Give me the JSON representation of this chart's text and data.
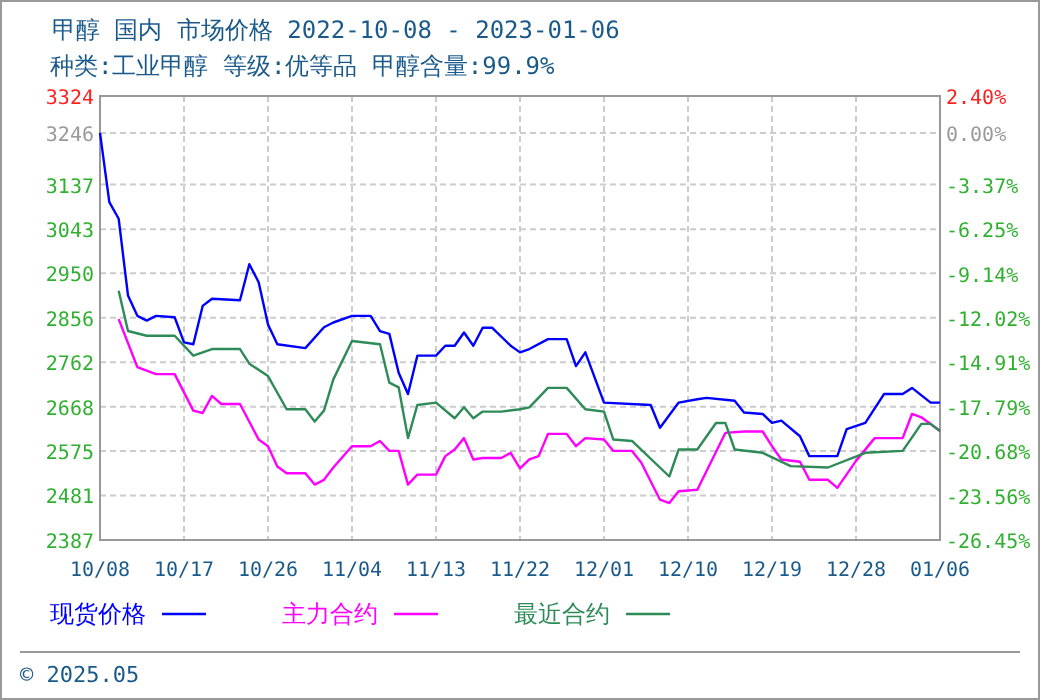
{
  "chart_data": {
    "type": "line",
    "title": "甲醇 国内 市场价格 2022-10-08 - 2023-01-06",
    "subtitle": "种类:工业甲醇 等级:优等品 甲醇含量:99.9%",
    "xlim": [
      "2022-10-08",
      "2023-01-06"
    ],
    "xticks": [
      {
        "value": "2022-10-08",
        "label": "10/08"
      },
      {
        "value": "2022-10-17",
        "label": "10/17"
      },
      {
        "value": "2022-10-26",
        "label": "10/26"
      },
      {
        "value": "2022-11-04",
        "label": "11/04"
      },
      {
        "value": "2022-11-13",
        "label": "11/13"
      },
      {
        "value": "2022-11-22",
        "label": "11/22"
      },
      {
        "value": "2022-12-01",
        "label": "12/01"
      },
      {
        "value": "2022-12-10",
        "label": "12/10"
      },
      {
        "value": "2022-12-19",
        "label": "12/19"
      },
      {
        "value": "2022-12-28",
        "label": "12/28"
      },
      {
        "value": "2023-01-06",
        "label": "01/06"
      }
    ],
    "ylim": [
      2387,
      3324
    ],
    "yticks": [
      2387,
      2481,
      2575,
      2668,
      2762,
      2856,
      2950,
      3043,
      3137,
      3246,
      3324
    ],
    "y2lim": [
      -26.45,
      2.4
    ],
    "y2ticks": [
      {
        "value": -26.45,
        "label": "-26.45%"
      },
      {
        "value": -23.56,
        "label": "-23.56%"
      },
      {
        "value": -20.68,
        "label": "-20.68%"
      },
      {
        "value": -17.79,
        "label": "-17.79%"
      },
      {
        "value": -14.91,
        "label": "-14.91%"
      },
      {
        "value": -12.02,
        "label": "-12.02%"
      },
      {
        "value": -9.14,
        "label": "-9.14%"
      },
      {
        "value": -6.25,
        "label": "-6.25%"
      },
      {
        "value": -3.37,
        "label": "-3.37%"
      },
      {
        "value": 0,
        "label": "0.00%"
      },
      {
        "value": 2.4,
        "label": "2.40%"
      }
    ],
    "grid": true,
    "legend": "bottom",
    "marker": "none",
    "line_style": "solid",
    "annotations": [
      "© 2025.05"
    ],
    "series": [
      {
        "name": "现货价格",
        "color": "#0000ff",
        "x": [
          "2022-10-08",
          "2022-10-09",
          "2022-10-10",
          "2022-10-11",
          "2022-10-12",
          "2022-10-13",
          "2022-10-14",
          "2022-10-16",
          "2022-10-17",
          "2022-10-18",
          "2022-10-19",
          "2022-10-20",
          "2022-10-23",
          "2022-10-24",
          "2022-10-25",
          "2022-10-26",
          "2022-10-27",
          "2022-10-30",
          "2022-11-01",
          "2022-11-02",
          "2022-11-04",
          "2022-11-06",
          "2022-11-07",
          "2022-11-08",
          "2022-11-09",
          "2022-11-10",
          "2022-11-11",
          "2022-11-13",
          "2022-11-14",
          "2022-11-15",
          "2022-11-16",
          "2022-11-17",
          "2022-11-18",
          "2022-11-19",
          "2022-11-21",
          "2022-11-22",
          "2022-11-23",
          "2022-11-25",
          "2022-11-27",
          "2022-11-28",
          "2022-11-29",
          "2022-12-01",
          "2022-12-06",
          "2022-12-07",
          "2022-12-09",
          "2022-12-11",
          "2022-12-12",
          "2022-12-15",
          "2022-12-16",
          "2022-12-18",
          "2022-12-19",
          "2022-12-20",
          "2022-12-22",
          "2022-12-23",
          "2022-12-26",
          "2022-12-27",
          "2022-12-29",
          "2022-12-31",
          "2023-01-02",
          "2023-01-03",
          "2023-01-05",
          "2023-01-06"
        ],
        "values": [
          3246,
          3100,
          3065,
          2903,
          2860,
          2850,
          2860,
          2857,
          2804,
          2800,
          2881,
          2896,
          2893,
          2969,
          2931,
          2842,
          2800,
          2792,
          2836,
          2846,
          2860,
          2860,
          2828,
          2822,
          2740,
          2695,
          2776,
          2776,
          2797,
          2797,
          2825,
          2797,
          2835,
          2835,
          2797,
          2783,
          2790,
          2811,
          2811,
          2754,
          2783,
          2677,
          2672,
          2624,
          2677,
          2684,
          2687,
          2681,
          2656,
          2653,
          2634,
          2639,
          2606,
          2564,
          2564,
          2621,
          2634,
          2695,
          2695,
          2708,
          2677,
          2677
        ]
      },
      {
        "name": "主力合约",
        "color": "#ff00ff",
        "x": [
          "2022-10-10",
          "2022-10-12",
          "2022-10-14",
          "2022-10-16",
          "2022-10-18",
          "2022-10-19",
          "2022-10-20",
          "2022-10-21",
          "2022-10-23",
          "2022-10-25",
          "2022-10-26",
          "2022-10-27",
          "2022-10-28",
          "2022-10-30",
          "2022-10-31",
          "2022-11-01",
          "2022-11-02",
          "2022-11-04",
          "2022-11-06",
          "2022-11-07",
          "2022-11-08",
          "2022-11-09",
          "2022-11-10",
          "2022-11-11",
          "2022-11-13",
          "2022-11-14",
          "2022-11-15",
          "2022-11-16",
          "2022-11-17",
          "2022-11-18",
          "2022-11-20",
          "2022-11-21",
          "2022-11-22",
          "2022-11-23",
          "2022-11-24",
          "2022-11-25",
          "2022-11-27",
          "2022-11-28",
          "2022-11-29",
          "2022-12-01",
          "2022-12-02",
          "2022-12-04",
          "2022-12-05",
          "2022-12-07",
          "2022-12-08",
          "2022-12-09",
          "2022-12-11",
          "2022-12-14",
          "2022-12-16",
          "2022-12-18",
          "2022-12-19",
          "2022-12-20",
          "2022-12-22",
          "2022-12-23",
          "2022-12-25",
          "2022-12-26",
          "2022-12-28",
          "2022-12-30",
          "2023-01-02",
          "2023-01-03",
          "2023-01-04",
          "2023-01-06"
        ],
        "values": [
          2853,
          2752,
          2737,
          2737,
          2660,
          2655,
          2691,
          2674,
          2674,
          2599,
          2585,
          2542,
          2528,
          2528,
          2504,
          2514,
          2540,
          2585,
          2585,
          2596,
          2575,
          2575,
          2504,
          2525,
          2525,
          2564,
          2578,
          2602,
          2557,
          2560,
          2560,
          2571,
          2538,
          2557,
          2564,
          2611,
          2611,
          2585,
          2602,
          2599,
          2575,
          2575,
          2550,
          2472,
          2465,
          2490,
          2493,
          2613,
          2616,
          2616,
          2585,
          2557,
          2552,
          2514,
          2514,
          2497,
          2554,
          2602,
          2602,
          2653,
          2646,
          2617
        ]
      },
      {
        "name": "最近合约",
        "color": "#2e8b57",
        "x": [
          "2022-10-10",
          "2022-10-11",
          "2022-10-13",
          "2022-10-16",
          "2022-10-18",
          "2022-10-20",
          "2022-10-23",
          "2022-10-24",
          "2022-10-26",
          "2022-10-28",
          "2022-10-30",
          "2022-10-31",
          "2022-11-01",
          "2022-11-02",
          "2022-11-04",
          "2022-11-07",
          "2022-11-08",
          "2022-11-09",
          "2022-11-10",
          "2022-11-11",
          "2022-11-13",
          "2022-11-15",
          "2022-11-16",
          "2022-11-17",
          "2022-11-18",
          "2022-11-20",
          "2022-11-22",
          "2022-11-23",
          "2022-11-25",
          "2022-11-27",
          "2022-11-29",
          "2022-12-01",
          "2022-12-02",
          "2022-12-04",
          "2022-12-08",
          "2022-12-09",
          "2022-12-11",
          "2022-12-13",
          "2022-12-14",
          "2022-12-15",
          "2022-12-18",
          "2022-12-21",
          "2022-12-25",
          "2022-12-29",
          "2023-01-02",
          "2023-01-04",
          "2023-01-05",
          "2023-01-06"
        ],
        "values": [
          2913,
          2828,
          2818,
          2818,
          2776,
          2790,
          2790,
          2759,
          2733,
          2663,
          2663,
          2637,
          2660,
          2726,
          2807,
          2800,
          2719,
          2709,
          2602,
          2672,
          2677,
          2644,
          2667,
          2644,
          2658,
          2658,
          2663,
          2667,
          2708,
          2708,
          2663,
          2658,
          2599,
          2596,
          2521,
          2578,
          2578,
          2634,
          2634,
          2578,
          2571,
          2543,
          2540,
          2571,
          2575,
          2632,
          2632,
          2617
        ]
      }
    ]
  }
}
